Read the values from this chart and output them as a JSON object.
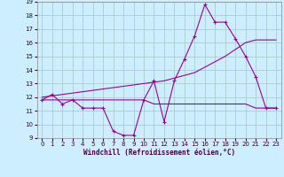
{
  "xlabel": "Windchill (Refroidissement éolien,°C)",
  "background_color": "#cceeff",
  "grid_color": "#aacccc",
  "line_color": "#990099",
  "xlim": [
    -0.5,
    23.5
  ],
  "ylim": [
    9,
    19
  ],
  "yticks": [
    9,
    10,
    11,
    12,
    13,
    14,
    15,
    16,
    17,
    18,
    19
  ],
  "xticks": [
    0,
    1,
    2,
    3,
    4,
    5,
    6,
    7,
    8,
    9,
    10,
    11,
    12,
    13,
    14,
    15,
    16,
    17,
    18,
    19,
    20,
    21,
    22,
    23
  ],
  "series": [
    {
      "x": [
        0,
        1,
        2,
        3,
        4,
        5,
        6,
        7,
        8,
        9,
        10,
        11,
        12,
        13,
        14,
        15,
        16,
        17,
        18,
        19,
        20,
        21,
        22,
        23
      ],
      "y": [
        11.8,
        11.8,
        11.8,
        11.8,
        11.8,
        11.8,
        11.8,
        11.8,
        11.8,
        11.8,
        11.8,
        11.5,
        11.5,
        11.5,
        11.5,
        11.5,
        11.5,
        11.5,
        11.5,
        11.5,
        11.5,
        11.2,
        11.2,
        11.2
      ],
      "markers": false
    },
    {
      "x": [
        0,
        1,
        2,
        3,
        4,
        5,
        6,
        7,
        8,
        9,
        10,
        11,
        12,
        13,
        14,
        15,
        16,
        17,
        18,
        19,
        20,
        21,
        22,
        23
      ],
      "y": [
        12.0,
        12.1,
        12.2,
        12.3,
        12.4,
        12.5,
        12.6,
        12.7,
        12.8,
        12.9,
        13.0,
        13.1,
        13.2,
        13.4,
        13.6,
        13.8,
        14.2,
        14.6,
        15.0,
        15.5,
        16.0,
        16.2,
        16.2,
        16.2
      ],
      "markers": false
    },
    {
      "x": [
        0,
        1,
        2,
        3,
        4,
        5,
        6,
        7,
        8,
        9,
        10,
        11,
        12,
        13,
        14,
        15,
        16,
        17,
        18,
        19,
        20,
        21,
        22,
        23
      ],
      "y": [
        11.8,
        12.2,
        11.5,
        11.8,
        11.2,
        11.2,
        11.2,
        9.5,
        9.2,
        9.2,
        11.8,
        13.2,
        10.2,
        13.2,
        14.8,
        16.5,
        18.8,
        17.5,
        17.5,
        16.3,
        15.0,
        13.5,
        11.2,
        11.2
      ],
      "markers": true
    }
  ]
}
